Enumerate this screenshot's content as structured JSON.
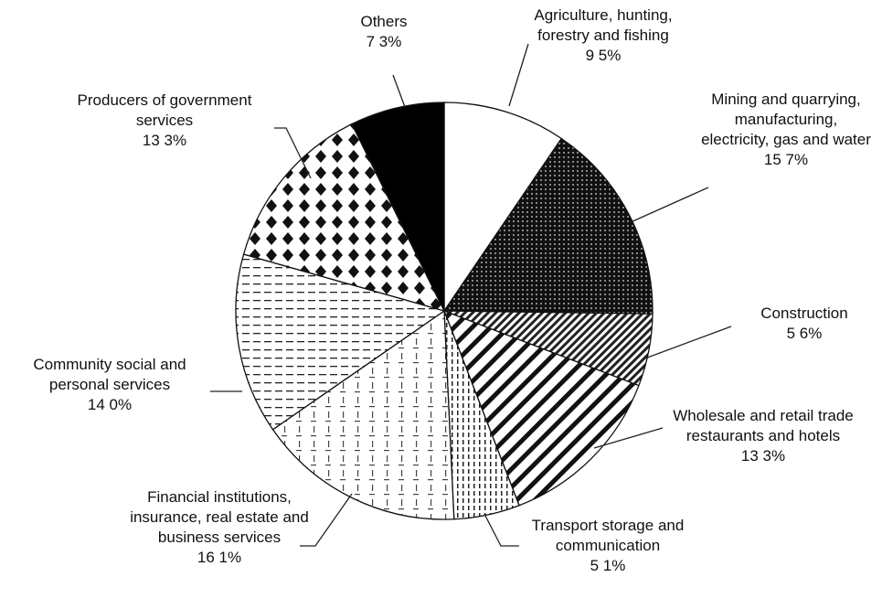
{
  "chart_data": {
    "type": "pie",
    "categories": [
      "Agriculture, hunting, forestry and fishing",
      "Mining and quarrying, manufacturing, electricity, gas and water",
      "Construction",
      "Wholesale and retail trade restaurants and hotels",
      "Transport storage and communication",
      "Financial institutions, insurance, real estate and business services",
      "Community social and personal services",
      "Producers of government services",
      "Others"
    ],
    "values": [
      9.5,
      15.7,
      5.6,
      13.3,
      5.1,
      16.1,
      14.0,
      13.3,
      7.3
    ],
    "value_labels": [
      "9 5%",
      "15 7%",
      "5 6%",
      "13 3%",
      "5 1%",
      "16 1%",
      "14 0%",
      "13 3%",
      "7 3%"
    ]
  }
}
